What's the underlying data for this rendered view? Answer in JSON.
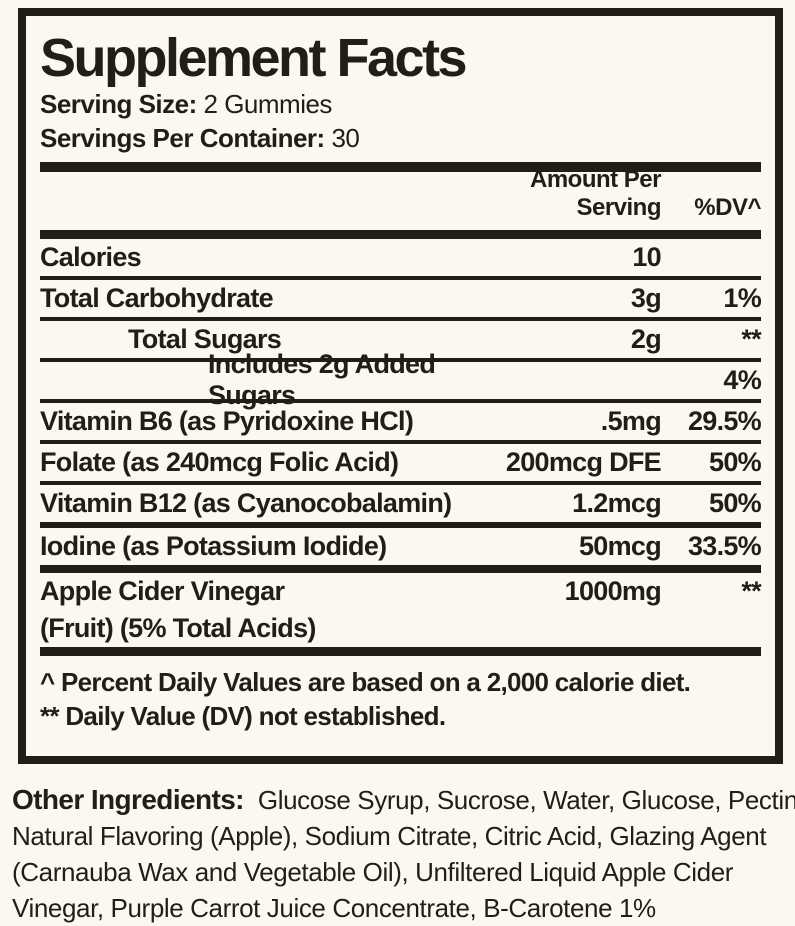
{
  "colors": {
    "background": "#fbf8f2",
    "ink": "#211e17"
  },
  "label": {
    "title": "Supplement Facts",
    "serving_size_label": "Serving Size:",
    "serving_size_value": "2 Gummies",
    "servings_per_container_label": "Servings Per Container:",
    "servings_per_container_value": "30",
    "columns": {
      "amount": "Amount Per Serving",
      "dv": "%DV^"
    },
    "rows": [
      {
        "name": "Calories",
        "amount": "10",
        "dv": "",
        "indent": 0,
        "sep": "thin"
      },
      {
        "name": "Total Carbohydrate",
        "amount": "3g",
        "dv": "1%",
        "indent": 0,
        "sep": "thin"
      },
      {
        "name": "Total Sugars",
        "amount": "2g",
        "dv": "**",
        "indent": 1,
        "sep": "thin"
      },
      {
        "name": "Includes 2g Added Sugars",
        "amount": "",
        "dv": "4%",
        "indent": 2,
        "sep": "thin"
      },
      {
        "name": "Vitamin B6 (as Pyridoxine HCl)",
        "amount": ".5mg",
        "dv": "29.5%",
        "indent": 0,
        "sep": "thin"
      },
      {
        "name": "Folate (as 240mcg Folic Acid)",
        "amount": "200mcg DFE",
        "dv": "50%",
        "indent": 0,
        "sep": "thin"
      },
      {
        "name": "Vitamin B12 (as Cyanocobalamin)",
        "amount": "1.2mcg",
        "dv": "50%",
        "indent": 0,
        "sep": "med"
      },
      {
        "name": "Iodine (as Potassium Iodide)",
        "amount": "50mcg",
        "dv": "33.5%",
        "indent": 0,
        "sep": "heavy"
      },
      {
        "name": "Apple Cider Vinegar",
        "name2": "(Fruit) (5% Total Acids)",
        "amount": "1000mg",
        "dv": "**",
        "indent": 0,
        "sep": "none"
      }
    ],
    "footnotes": [
      "^ Percent Daily Values are based on a 2,000 calorie diet.",
      "** Daily Value (DV) not established."
    ]
  },
  "other_ingredients": {
    "label": "Other Ingredients:",
    "lines": [
      "Glucose Syrup, Sucrose, Water, Glucose, Pectin",
      "Natural Flavoring (Apple), Sodium Citrate, Citric Acid, Glazing Agent",
      "(Carnauba Wax and Vegetable Oil), Unfiltered Liquid Apple Cider",
      "Vinegar, Purple Carrot Juice Concentrate, B-Carotene 1%"
    ]
  }
}
